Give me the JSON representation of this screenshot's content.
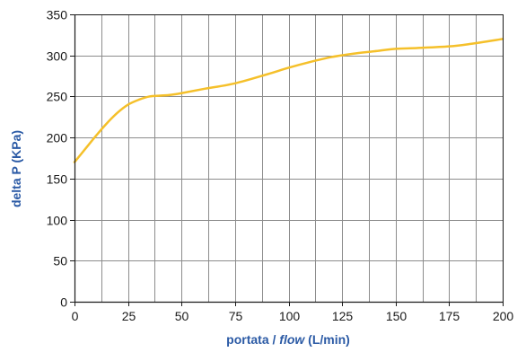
{
  "chart_data": {
    "type": "line",
    "title": "",
    "xlabel_parts": [
      "portata / ",
      "flow",
      " (L/min)"
    ],
    "ylabel": "delta P (KPa)",
    "xlim": [
      0,
      200
    ],
    "ylim": [
      0,
      350
    ],
    "x_ticks": [
      0,
      25,
      50,
      75,
      100,
      125,
      150,
      175,
      200
    ],
    "y_ticks": [
      0,
      50,
      100,
      150,
      200,
      250,
      300,
      350
    ],
    "x_grid_step": 12.5,
    "y_grid_step": 50,
    "grid": true,
    "legend": "none",
    "series": [
      {
        "color": "#f5c02a",
        "x": [
          0,
          5,
          10,
          15,
          20,
          25,
          30,
          35,
          40,
          45,
          50,
          60,
          75,
          90,
          100,
          110,
          120,
          130,
          140,
          150,
          160,
          175,
          185,
          200
        ],
        "y": [
          170,
          186,
          202,
          217,
          230,
          240,
          246,
          250,
          251,
          252,
          254,
          259,
          266,
          277,
          285,
          292,
          298,
          302,
          305,
          308,
          309,
          311,
          314,
          320
        ]
      }
    ]
  },
  "colors": {
    "axis_title": "#2b5aa5",
    "grid": "#8c8c8c",
    "axis": "#1a1a1a",
    "text": "#1a1a1a"
  }
}
